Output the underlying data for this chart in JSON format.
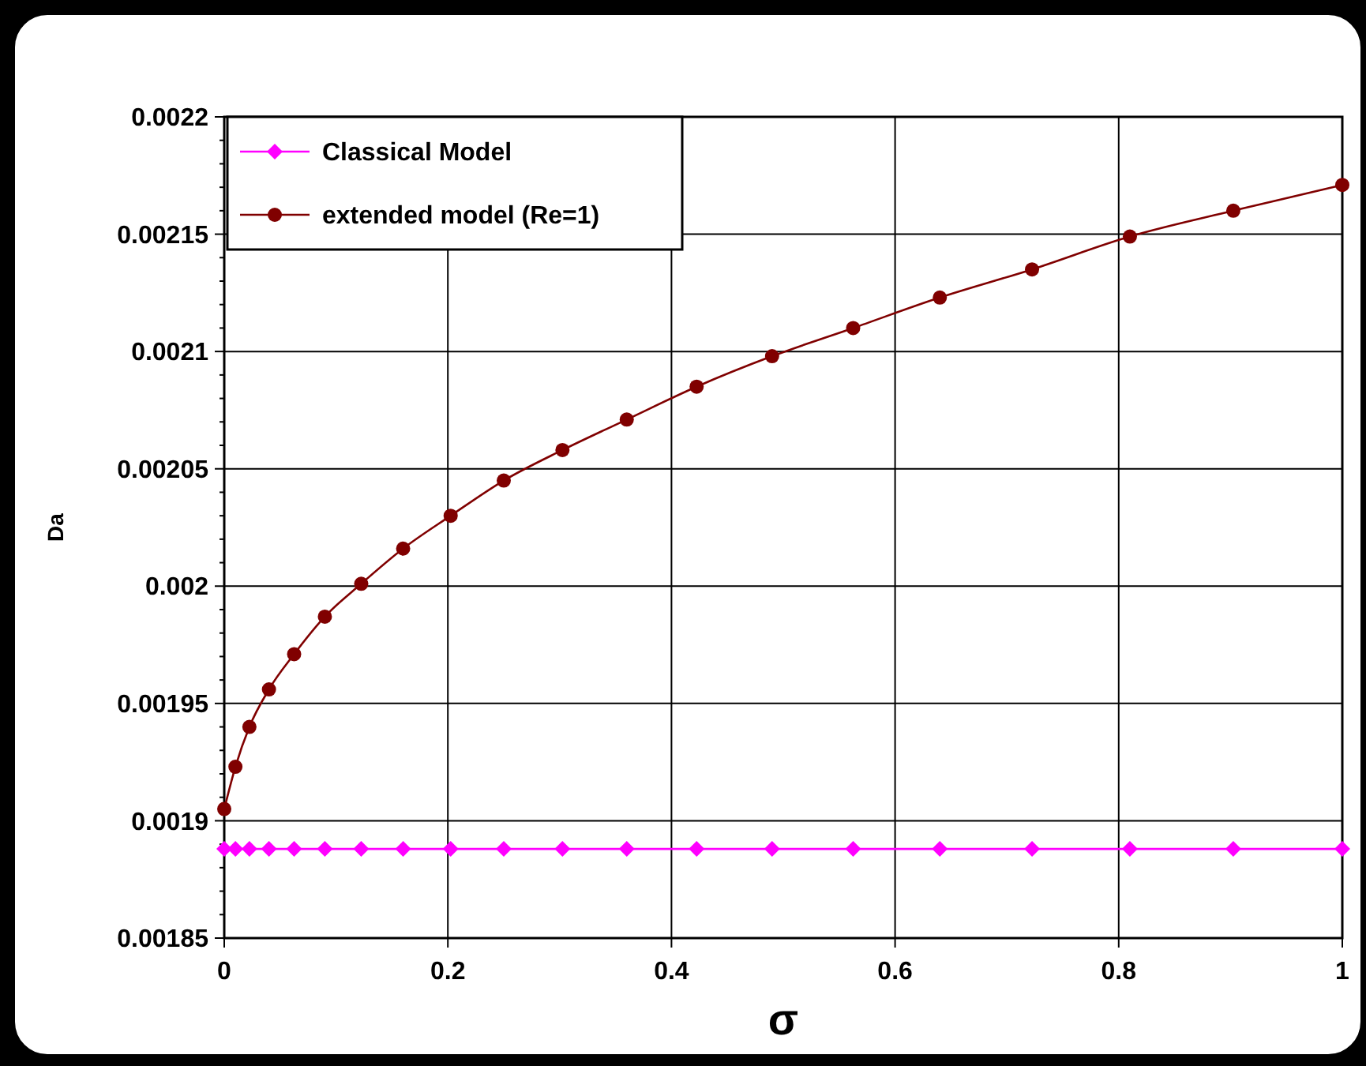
{
  "chart_data": {
    "type": "line",
    "xlabel": "σ",
    "ylabel": "Da",
    "x": [
      0,
      0.01,
      0.0225,
      0.04,
      0.0625,
      0.09,
      0.1225,
      0.16,
      0.2025,
      0.25,
      0.3025,
      0.36,
      0.4225,
      0.49,
      0.5625,
      0.64,
      0.7225,
      0.81,
      0.9025,
      1
    ],
    "series": [
      {
        "name": "Classical Model",
        "color": "#ff00ff",
        "marker": "diamond",
        "values": [
          0.001888,
          0.001888,
          0.001888,
          0.001888,
          0.001888,
          0.001888,
          0.001888,
          0.001888,
          0.001888,
          0.001888,
          0.001888,
          0.001888,
          0.001888,
          0.001888,
          0.001888,
          0.001888,
          0.001888,
          0.001888,
          0.001888,
          0.001888
        ]
      },
      {
        "name": "extended model (Re=1)",
        "color": "#800000",
        "marker": "circle",
        "values": [
          0.001905,
          0.001923,
          0.00194,
          0.001956,
          0.001971,
          0.001987,
          0.002001,
          0.002016,
          0.00203,
          0.002045,
          0.002058,
          0.002071,
          0.002085,
          0.002098,
          0.00211,
          0.002123,
          0.002135,
          0.002149,
          0.00216,
          0.002171
        ]
      }
    ],
    "xlim": [
      0,
      1
    ],
    "xticks": [
      0,
      0.2,
      0.4,
      0.6,
      0.8,
      1
    ],
    "ylim": [
      0.00185,
      0.0022
    ],
    "yticks": [
      0.00185,
      0.0019,
      0.00195,
      0.002,
      0.00205,
      0.0021,
      0.00215,
      0.0022
    ],
    "grid": true,
    "legend": "top left"
  }
}
